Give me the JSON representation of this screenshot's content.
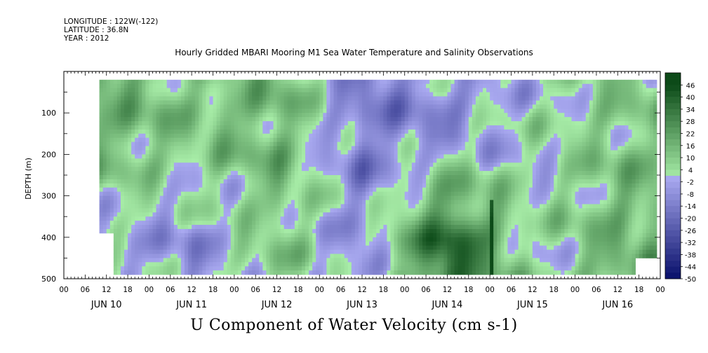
{
  "header": {
    "longitude": "LONGITUDE : 122W(-122)",
    "latitude": "LATITUDE : 36.8N",
    "year": "YEAR : 2012"
  },
  "colors": {
    "negative_dark": "#080f6a",
    "negative_light": "#a9a9f0",
    "positive_light": "#a8eda8",
    "positive_dark": "#0c4a18",
    "missing": "#ffffff"
  },
  "chart_data": {
    "type": "heatmap",
    "title": "Hourly Gridded MBARI Mooring M1 Sea Water Temperature and Salinity Observations",
    "variable_label": "U Component of Water Velocity (cm s-1)",
    "xlabel": "",
    "ylabel": "DEPTH (m)",
    "x_hour_ticks": [
      "00",
      "06",
      "12",
      "18",
      "00",
      "06",
      "12",
      "18",
      "00",
      "06",
      "12",
      "18",
      "00",
      "06",
      "12",
      "18",
      "00",
      "06",
      "12",
      "18",
      "00",
      "06",
      "12",
      "18",
      "00",
      "06",
      "12",
      "18",
      "00"
    ],
    "x_day_labels": [
      "JUN 10",
      "JUN 11",
      "JUN 12",
      "JUN 13",
      "JUN 14",
      "JUN 15",
      "JUN 16"
    ],
    "y_ticks": [
      "100",
      "200",
      "300",
      "400",
      "500"
    ],
    "ylim": [
      500,
      0
    ],
    "y_reversed": true,
    "colorbar_labels": [
      "46",
      "40",
      "34",
      "28",
      "22",
      "16",
      "10",
      "4",
      "-2",
      "-8",
      "-14",
      "-20",
      "-26",
      "-32",
      "-38",
      "-44",
      "-50"
    ],
    "colorbar_range": [
      -50,
      52
    ],
    "grid": false,
    "field_summary": [
      {
        "day": "JUN 10",
        "upper_layer": "positive 10 to 22",
        "lower_layer": "mixed, mostly -8 to 4"
      },
      {
        "day": "JUN 11",
        "upper_layer": "positive 4 to 16",
        "lower_layer": "negative -14 to -2"
      },
      {
        "day": "JUN 12",
        "upper_layer": "positive 10 to 22",
        "lower_layer": "positive 4 to 16"
      },
      {
        "day": "JUN 13",
        "upper_layer": "negative -20 to -8",
        "lower_layer": "negative -14 to -2"
      },
      {
        "day": "JUN 14",
        "upper_layer": "negative -14 to -2",
        "lower_layer": "positive up to 40 near bottom"
      },
      {
        "day": "JUN 15",
        "upper_layer": "mixed -8 to 10",
        "lower_layer": "mixed -8 to 10"
      },
      {
        "day": "JUN 16",
        "upper_layer": "positive 4 to 16",
        "lower_layer": "positive 10 to 22"
      }
    ]
  }
}
